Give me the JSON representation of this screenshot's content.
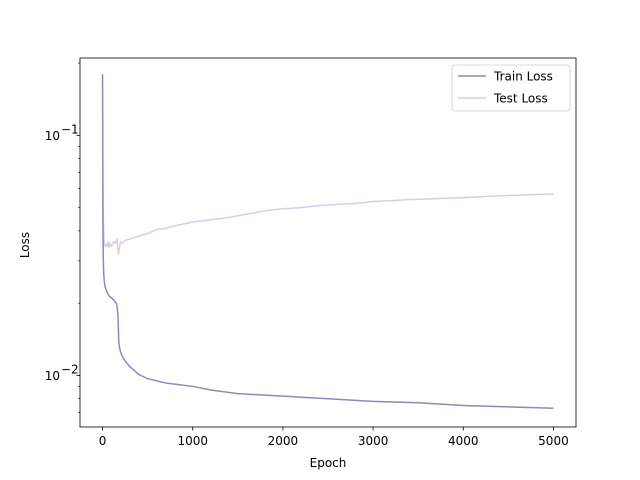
{
  "chart_data": {
    "type": "line",
    "title": "",
    "xlabel": "Epoch",
    "ylabel": "Loss",
    "xlim": [
      -250,
      5250
    ],
    "ylim": [
      0.0061,
      0.21
    ],
    "yscale": "log",
    "xticks": [
      0,
      1000,
      2000,
      3000,
      4000,
      5000
    ],
    "xtick_labels": [
      "0",
      "1000",
      "2000",
      "3000",
      "4000",
      "5000"
    ],
    "yticks_major": [
      0.01,
      0.1
    ],
    "ytick_labels": [
      {
        "base": "10",
        "exp": "−2"
      },
      {
        "base": "10",
        "exp": "−1"
      }
    ],
    "yticks_minor": [
      0.007,
      0.008,
      0.009,
      0.02,
      0.03,
      0.04,
      0.05,
      0.06,
      0.07,
      0.08,
      0.09,
      0.2
    ],
    "grid": false,
    "legend_position": "top-right",
    "series": [
      {
        "name": "Test Loss",
        "color": "#d9cde5",
        "x": [
          0,
          3,
          6,
          10,
          15,
          20,
          25,
          30,
          40,
          50,
          60,
          70,
          80,
          100,
          120,
          140,
          160,
          175,
          190,
          200,
          220,
          250,
          300,
          350,
          400,
          500,
          600,
          700,
          800,
          1000,
          1200,
          1400,
          1600,
          1800,
          2000,
          2200,
          2400,
          2600,
          2800,
          3000,
          3200,
          3400,
          3600,
          3800,
          4000,
          4200,
          4400,
          4600,
          4800,
          5000
        ],
        "y": [
          0.095,
          0.075,
          0.052,
          0.043,
          0.038,
          0.035,
          0.0345,
          0.035,
          0.0352,
          0.0345,
          0.036,
          0.034,
          0.0355,
          0.0345,
          0.036,
          0.0355,
          0.037,
          0.032,
          0.0345,
          0.036,
          0.0355,
          0.0365,
          0.037,
          0.0375,
          0.038,
          0.039,
          0.0405,
          0.041,
          0.042,
          0.0435,
          0.0445,
          0.0455,
          0.047,
          0.0485,
          0.0495,
          0.05,
          0.051,
          0.0515,
          0.052,
          0.053,
          0.0535,
          0.054,
          0.0543,
          0.0547,
          0.055,
          0.0555,
          0.056,
          0.0563,
          0.0567,
          0.057
        ]
      },
      {
        "name": "Train Loss",
        "color": "#9585bd",
        "x": [
          0,
          1,
          2,
          3,
          5,
          8,
          12,
          18,
          25,
          35,
          50,
          70,
          100,
          130,
          150,
          160,
          170,
          175,
          180,
          190,
          200,
          220,
          250,
          300,
          350,
          400,
          500,
          600,
          700,
          800,
          1000,
          1200,
          1500,
          2000,
          2500,
          3000,
          3500,
          4000,
          4500,
          5000
        ],
        "y": [
          0.18,
          0.14,
          0.1,
          0.06,
          0.04,
          0.031,
          0.027,
          0.025,
          0.0237,
          0.023,
          0.0222,
          0.0215,
          0.021,
          0.0205,
          0.02,
          0.0195,
          0.018,
          0.016,
          0.0138,
          0.013,
          0.0125,
          0.012,
          0.0115,
          0.0109,
          0.0105,
          0.0101,
          0.0097,
          0.0095,
          0.0093,
          0.0092,
          0.009,
          0.0087,
          0.0084,
          0.0082,
          0.008,
          0.0078,
          0.0077,
          0.0075,
          0.0074,
          0.0073
        ]
      }
    ],
    "legend": [
      {
        "name": "Train Loss",
        "color": "#9585bd"
      },
      {
        "name": "Test Loss",
        "color": "#d9cde5"
      }
    ]
  }
}
